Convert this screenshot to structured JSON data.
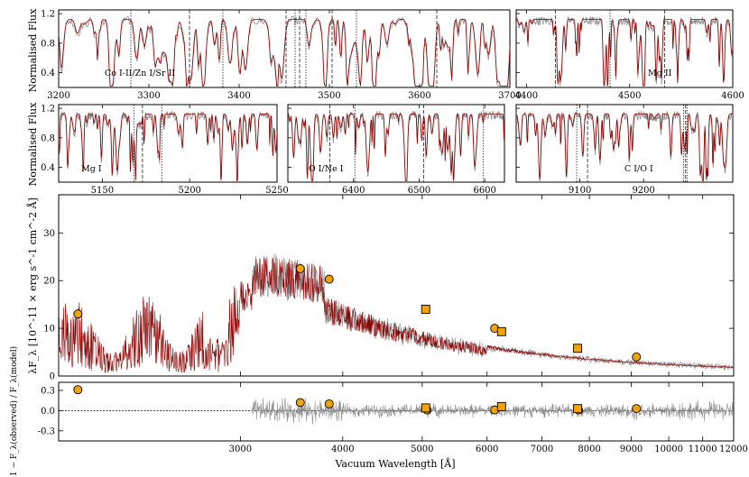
{
  "colors": {
    "model": "#8b0000",
    "observed": "#8c8c8c",
    "marker_fill": "#f5a300",
    "marker_edge": "#000000"
  },
  "chart_data": [
    {
      "type": "line",
      "panel": "zoom-1",
      "ylabel": "Normalised Flux",
      "annotation": "Co I-II/Zn I/Sr II",
      "xlim": [
        3200,
        3700
      ],
      "ylim": [
        0.2,
        1.25
      ],
      "xticks": [
        3200,
        3300,
        3400,
        3500,
        3600,
        3700
      ],
      "yticks": [
        0.4,
        0.8,
        1.2
      ],
      "line_markers": [
        3280,
        3345,
        3382,
        3452,
        3462,
        3467,
        3474,
        3503,
        3530,
        3619
      ],
      "series": [
        {
          "values": "continuum near 1.1 with dense absorption lines"
        }
      ]
    },
    {
      "type": "line",
      "panel": "zoom-2",
      "annotation": "Mg II",
      "xlim": [
        4390,
        4600
      ],
      "ylim": [
        0.2,
        1.25
      ],
      "xticks": [
        4400,
        4500,
        4600
      ],
      "line_markers": [
        4390,
        4428,
        4481,
        4534
      ]
    },
    {
      "type": "line",
      "panel": "zoom-3",
      "ylabel": "Normalised Flux",
      "annotation": "Mg I",
      "xlim": [
        5125,
        5250
      ],
      "ylim": [
        0.2,
        1.25
      ],
      "xticks": [
        5150,
        5200,
        5250
      ],
      "yticks": [
        0.4,
        0.8,
        1.2
      ],
      "line_markers": [
        5168,
        5173,
        5184
      ]
    },
    {
      "type": "line",
      "panel": "zoom-4",
      "annotation": "O I/Ne I",
      "xlim": [
        6300,
        6630
      ],
      "ylim": [
        0.2,
        1.25
      ],
      "xticks": [
        6400,
        6500,
        6600
      ],
      "line_markers": [
        6300,
        6364,
        6402,
        6507,
        6598
      ]
    },
    {
      "type": "line",
      "panel": "zoom-5",
      "annotation": "C I/O I",
      "xlim": [
        9000,
        9340
      ],
      "ylim": [
        0.2,
        1.25
      ],
      "xticks": [
        9100,
        9200
      ],
      "line_markers": [
        9095,
        9112,
        9263,
        9266,
        9268
      ]
    },
    {
      "type": "line",
      "panel": "sed",
      "ylabel": "λF_λ [10^-11 × erg s^-1 cm^-2 Å]",
      "xlim": [
        1800,
        12000
      ],
      "ylim": [
        0,
        38
      ],
      "xscale": "log",
      "yticks": [
        0,
        10,
        20,
        30
      ],
      "photometry_circles": [
        {
          "x": 1900,
          "y": 13.0
        },
        {
          "x": 3550,
          "y": 22.5
        },
        {
          "x": 3850,
          "y": 20.3
        },
        {
          "x": 6130,
          "y": 10.0
        },
        {
          "x": 9130,
          "y": 4.0
        }
      ],
      "photometry_squares": [
        {
          "x": 5050,
          "y": 14.0
        },
        {
          "x": 6250,
          "y": 9.3
        },
        {
          "x": 7740,
          "y": 5.8
        }
      ]
    },
    {
      "type": "scatter",
      "panel": "residual",
      "ylabel": "1 − F_λ(observed) / F_λ(model)",
      "xlabel": "Vacuum Wavelength [Å]",
      "xlim": [
        1800,
        12000
      ],
      "ylim": [
        -0.45,
        0.42
      ],
      "xscale": "log",
      "xticks": [
        3000,
        4000,
        5000,
        6000,
        7000,
        8000,
        9000,
        10000,
        11000,
        12000
      ],
      "yticks": [
        -0.3,
        0.0,
        0.3
      ],
      "circles": [
        {
          "x": 1900,
          "y": 0.31
        },
        {
          "x": 3550,
          "y": 0.12
        },
        {
          "x": 3850,
          "y": 0.1
        },
        {
          "x": 5070,
          "y": 0.01
        },
        {
          "x": 6130,
          "y": 0.01
        },
        {
          "x": 7760,
          "y": 0.01
        },
        {
          "x": 9130,
          "y": 0.03
        }
      ],
      "squares": [
        {
          "x": 5050,
          "y": 0.04
        },
        {
          "x": 6250,
          "y": 0.06
        },
        {
          "x": 7740,
          "y": 0.03
        }
      ]
    }
  ],
  "labels": {
    "norm_flux": "Normalised Flux",
    "ann1": "Co I-II/Zn I/Sr II",
    "ann2": "Mg II",
    "ann3": "Mg I",
    "ann4": "O I/Ne I",
    "ann5": "C I/O I",
    "sed_ylabel": "λF_λ [10^-11 × erg s^-1 cm^-2 Å]",
    "res_ylabel": "1 − F_λ(observed) / F_λ(model)",
    "xlabel": "Vacuum Wavelength [Å]"
  }
}
